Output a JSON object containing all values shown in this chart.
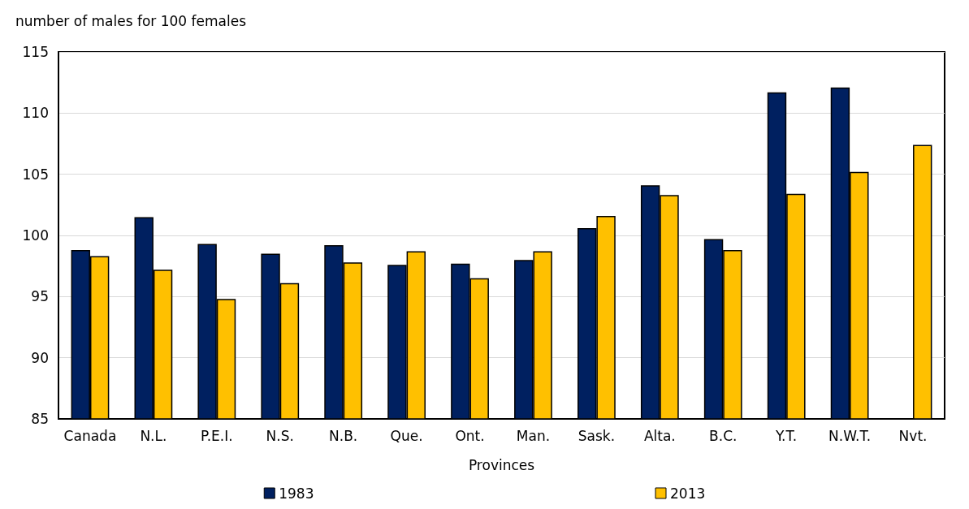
{
  "chart_data": {
    "type": "bar",
    "ylabel": "number of males for 100 females",
    "xlabel": "Provinces",
    "categories": [
      "Canada",
      "N.L.",
      "P.E.I.",
      "N.S.",
      "N.B.",
      "Que.",
      "Ont.",
      "Man.",
      "Sask.",
      "Alta.",
      "B.C.",
      "Y.T.",
      "N.W.T.",
      "Nvt."
    ],
    "series": [
      {
        "name": "1983",
        "color": "#002060",
        "values": [
          98.8,
          101.5,
          99.3,
          98.5,
          99.2,
          97.6,
          97.7,
          98.0,
          100.6,
          104.1,
          99.7,
          111.7,
          112.1,
          null
        ]
      },
      {
        "name": "2013",
        "color": "#ffc000",
        "values": [
          98.3,
          97.2,
          94.8,
          96.1,
          97.8,
          98.7,
          96.5,
          98.7,
          101.6,
          103.3,
          98.8,
          103.4,
          105.2,
          107.4
        ]
      }
    ],
    "ylim": [
      85,
      115
    ],
    "yticks": [
      85,
      90,
      95,
      100,
      105,
      110,
      115
    ],
    "grid": "y",
    "legend": "bottom"
  }
}
